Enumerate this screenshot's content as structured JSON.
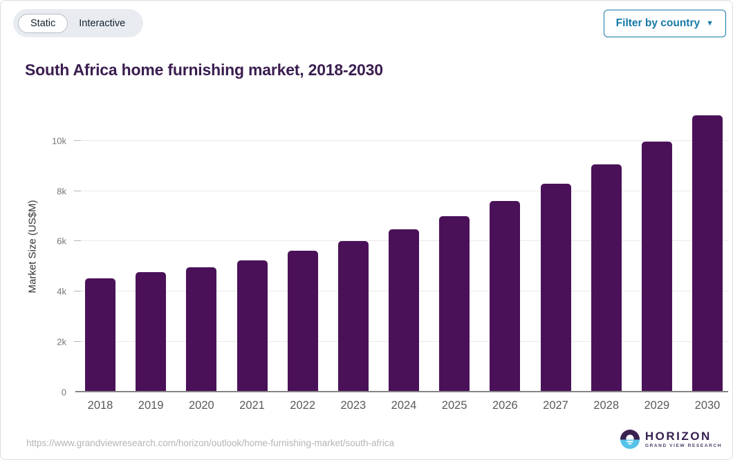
{
  "toolbar": {
    "toggle": {
      "options": [
        "Static",
        "Interactive"
      ],
      "selected": "Static"
    },
    "filter_button": {
      "label": "Filter by country",
      "icon": "caret-down"
    }
  },
  "chart_data": {
    "type": "bar",
    "title": "South Africa home furnishing market, 2018-2030",
    "xlabel": "",
    "ylabel": "Market Size (US$M)",
    "categories": [
      "2018",
      "2019",
      "2020",
      "2021",
      "2022",
      "2023",
      "2024",
      "2025",
      "2026",
      "2027",
      "2028",
      "2029",
      "2030"
    ],
    "values": [
      4530,
      4780,
      4960,
      5250,
      5630,
      6020,
      6470,
      7000,
      7610,
      8290,
      9060,
      9950,
      11000
    ],
    "ylim": [
      0,
      11170
    ],
    "yticks": [
      {
        "value": 0,
        "label": "0"
      },
      {
        "value": 2000,
        "label": "2k"
      },
      {
        "value": 4000,
        "label": "4k"
      },
      {
        "value": 6000,
        "label": "6k"
      },
      {
        "value": 8000,
        "label": "8k"
      },
      {
        "value": 10000,
        "label": "10k"
      }
    ],
    "grid": true,
    "legend": "none",
    "bar_color": "#4a1159",
    "title_color": "#3a1d4f",
    "accent_color": "#1779a8"
  },
  "footer": {
    "source_url": "https://www.grandviewresearch.com/horizon/outlook/home-furnishing-market/south-africa",
    "logo": {
      "brand": "HORIZON",
      "subtitle": "GRAND VIEW RESEARCH",
      "colors": {
        "top": "#3a2250",
        "bottom": "#57c3e9"
      }
    }
  }
}
